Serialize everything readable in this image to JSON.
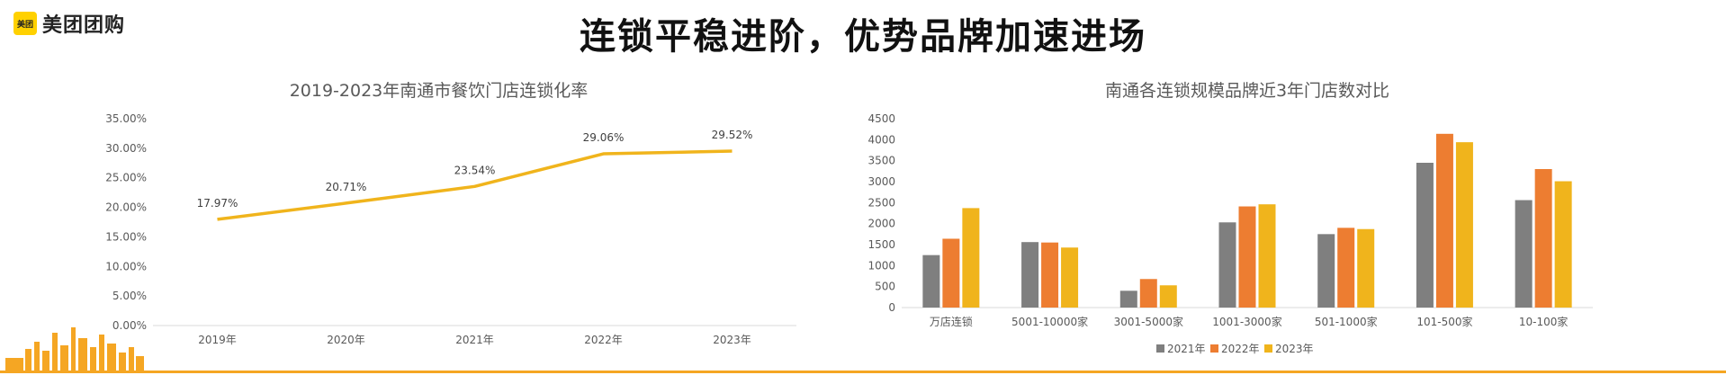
{
  "logo": {
    "badge_text": "美团",
    "brand_text": "美团团购"
  },
  "page_title": "连锁平稳进阶，优势品牌加速进场",
  "colors": {
    "accent": "#f5a623",
    "gray": "#7f7f7f",
    "orange": "#ed7d31",
    "yellow": "#f0b41c",
    "line": "#f0b41c"
  },
  "chart_data": [
    {
      "type": "line",
      "title": "2019-2023年南通市餐饮门店连锁化率",
      "categories": [
        "2019年",
        "2020年",
        "2021年",
        "2022年",
        "2023年"
      ],
      "series": [
        {
          "values": [
            17.97,
            20.71,
            23.54,
            29.06,
            29.52
          ],
          "labels": [
            "17.97%",
            "20.71%",
            "23.54%",
            "29.06%",
            "29.52%"
          ]
        }
      ],
      "yticks": [
        "0.00%",
        "5.00%",
        "10.00%",
        "15.00%",
        "20.00%",
        "25.00%",
        "30.00%",
        "35.00%"
      ],
      "ylim": [
        0,
        35
      ],
      "grid": false
    },
    {
      "type": "bar",
      "title": "南通各连锁规模品牌近3年门店数对比",
      "categories": [
        "万店连锁",
        "5001-10000家",
        "3001-5000家",
        "1001-3000家",
        "501-1000家",
        "101-500家",
        "10-100家"
      ],
      "series": [
        {
          "name": "2021年",
          "values": [
            1250,
            1560,
            400,
            2030,
            1750,
            3450,
            2560
          ]
        },
        {
          "name": "2022年",
          "values": [
            1640,
            1550,
            680,
            2410,
            1900,
            4140,
            3300
          ]
        },
        {
          "name": "2023年",
          "values": [
            2370,
            1430,
            530,
            2460,
            1870,
            3940,
            3010
          ]
        }
      ],
      "yticks": [
        "0",
        "500",
        "1000",
        "1500",
        "2000",
        "2500",
        "3000",
        "3500",
        "4000",
        "4500"
      ],
      "ylim": [
        0,
        4500
      ],
      "legend": "bottom",
      "grid": false
    }
  ]
}
